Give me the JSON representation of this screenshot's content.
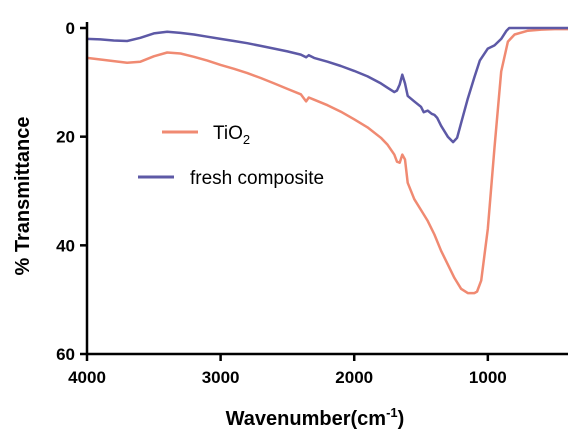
{
  "chart_data": {
    "type": "line",
    "xlabel": "Wavenumber(cm",
    "xlabel_sup": "-1",
    "xlabel_end": ")",
    "ylabel": "% Transmittance",
    "xlim": [
      4000,
      400
    ],
    "ylim": [
      60,
      0
    ],
    "xticks": [
      "4000",
      "3000",
      "2000",
      "1000"
    ],
    "xtick_values": [
      4000,
      3000,
      2000,
      1000
    ],
    "yticks": [
      "0",
      "20",
      "40",
      "60"
    ],
    "ytick_values": [
      0,
      20,
      40,
      60
    ],
    "grid": false,
    "legend_position": "left-middle",
    "series": [
      {
        "name": "TiO",
        "name_sub": "2",
        "color": "#f08a72",
        "x": [
          4000,
          3900,
          3800,
          3700,
          3600,
          3500,
          3400,
          3300,
          3200,
          3100,
          3000,
          2900,
          2800,
          2700,
          2600,
          2500,
          2400,
          2360,
          2340,
          2300,
          2200,
          2100,
          2000,
          1900,
          1800,
          1750,
          1700,
          1680,
          1660,
          1640,
          1620,
          1600,
          1550,
          1500,
          1450,
          1400,
          1350,
          1300,
          1250,
          1200,
          1150,
          1100,
          1080,
          1050,
          1000,
          950,
          900,
          850,
          800,
          700,
          600,
          500,
          400
        ],
        "y": [
          5.5,
          5.8,
          6.1,
          6.4,
          6.2,
          5.2,
          4.5,
          4.7,
          5.3,
          6.0,
          6.8,
          7.5,
          8.3,
          9.2,
          10.2,
          11.2,
          12.2,
          13.5,
          12.8,
          13.2,
          14.2,
          15.4,
          16.8,
          18.3,
          20.2,
          21.5,
          23.3,
          24.6,
          24.8,
          23.3,
          24.2,
          28.5,
          31.5,
          33.5,
          35.5,
          38.0,
          41.0,
          43.5,
          46.0,
          48.0,
          48.8,
          48.8,
          48.5,
          46.5,
          37.0,
          22.0,
          8.0,
          2.5,
          1.2,
          0.5,
          0.3,
          0.2,
          0.2
        ]
      },
      {
        "name": "fresh composite",
        "color": "#5d59a6",
        "x": [
          4000,
          3900,
          3800,
          3700,
          3600,
          3500,
          3400,
          3300,
          3200,
          3100,
          3000,
          2900,
          2800,
          2700,
          2600,
          2500,
          2400,
          2360,
          2340,
          2300,
          2200,
          2100,
          2000,
          1900,
          1800,
          1750,
          1700,
          1680,
          1660,
          1640,
          1620,
          1600,
          1550,
          1500,
          1480,
          1450,
          1420,
          1400,
          1380,
          1350,
          1300,
          1260,
          1230,
          1200,
          1150,
          1100,
          1060,
          1000,
          950,
          900,
          860,
          840,
          800,
          700,
          600,
          500,
          400
        ],
        "y": [
          2.0,
          2.1,
          2.3,
          2.4,
          1.8,
          1.0,
          0.7,
          0.9,
          1.2,
          1.6,
          2.0,
          2.4,
          2.8,
          3.3,
          3.8,
          4.3,
          4.9,
          5.4,
          5.0,
          5.5,
          6.2,
          7.0,
          7.9,
          8.9,
          10.2,
          11.0,
          11.8,
          11.5,
          10.4,
          8.6,
          10.2,
          12.5,
          13.5,
          14.5,
          15.5,
          15.2,
          15.8,
          16.0,
          16.5,
          18.0,
          20.0,
          21.0,
          20.2,
          17.5,
          13.0,
          9.0,
          6.0,
          3.8,
          3.2,
          2.0,
          0.5,
          0.0,
          0.0,
          0.0,
          0.0,
          0.0,
          0.0
        ]
      }
    ]
  }
}
